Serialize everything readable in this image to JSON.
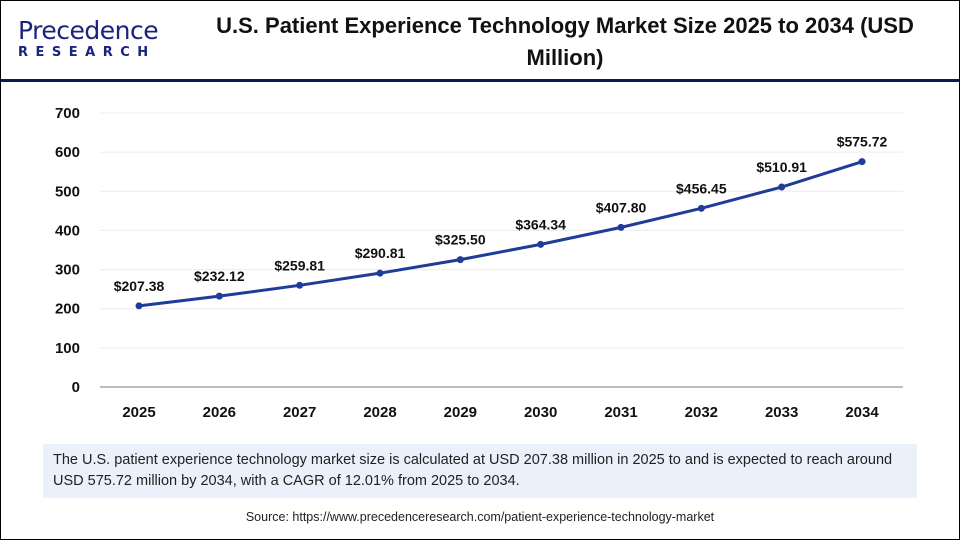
{
  "brand": {
    "line1": "Precedence",
    "line2": "RESEARCH"
  },
  "title": "U.S. Patient Experience Technology Market Size 2025 to 2034 (USD Million)",
  "chart_data": {
    "type": "line",
    "categories": [
      "2025",
      "2026",
      "2027",
      "2028",
      "2029",
      "2030",
      "2031",
      "2032",
      "2033",
      "2034"
    ],
    "values": [
      207.38,
      232.12,
      259.81,
      290.81,
      325.5,
      364.34,
      407.8,
      456.45,
      510.91,
      575.72
    ],
    "data_labels": [
      "$207.38",
      "$232.12",
      "$259.81",
      "$290.81",
      "$325.50",
      "$364.34",
      "$407.80",
      "$456.45",
      "$510.91",
      "$575.72"
    ],
    "yticks": [
      "0",
      "100",
      "200",
      "300",
      "400",
      "500",
      "600",
      "700"
    ],
    "ylim": [
      0,
      700
    ],
    "grid": true,
    "line_color": "#1f3c99"
  },
  "note": "The U.S. patient experience technology market size is calculated at USD 207.38 million in 2025 to and is expected to reach around USD 575.72 million by 2034, with a CAGR of 12.01% from 2025 to 2034.",
  "source": "Source: https://www.precedenceresearch.com/patient-experience-technology-market"
}
